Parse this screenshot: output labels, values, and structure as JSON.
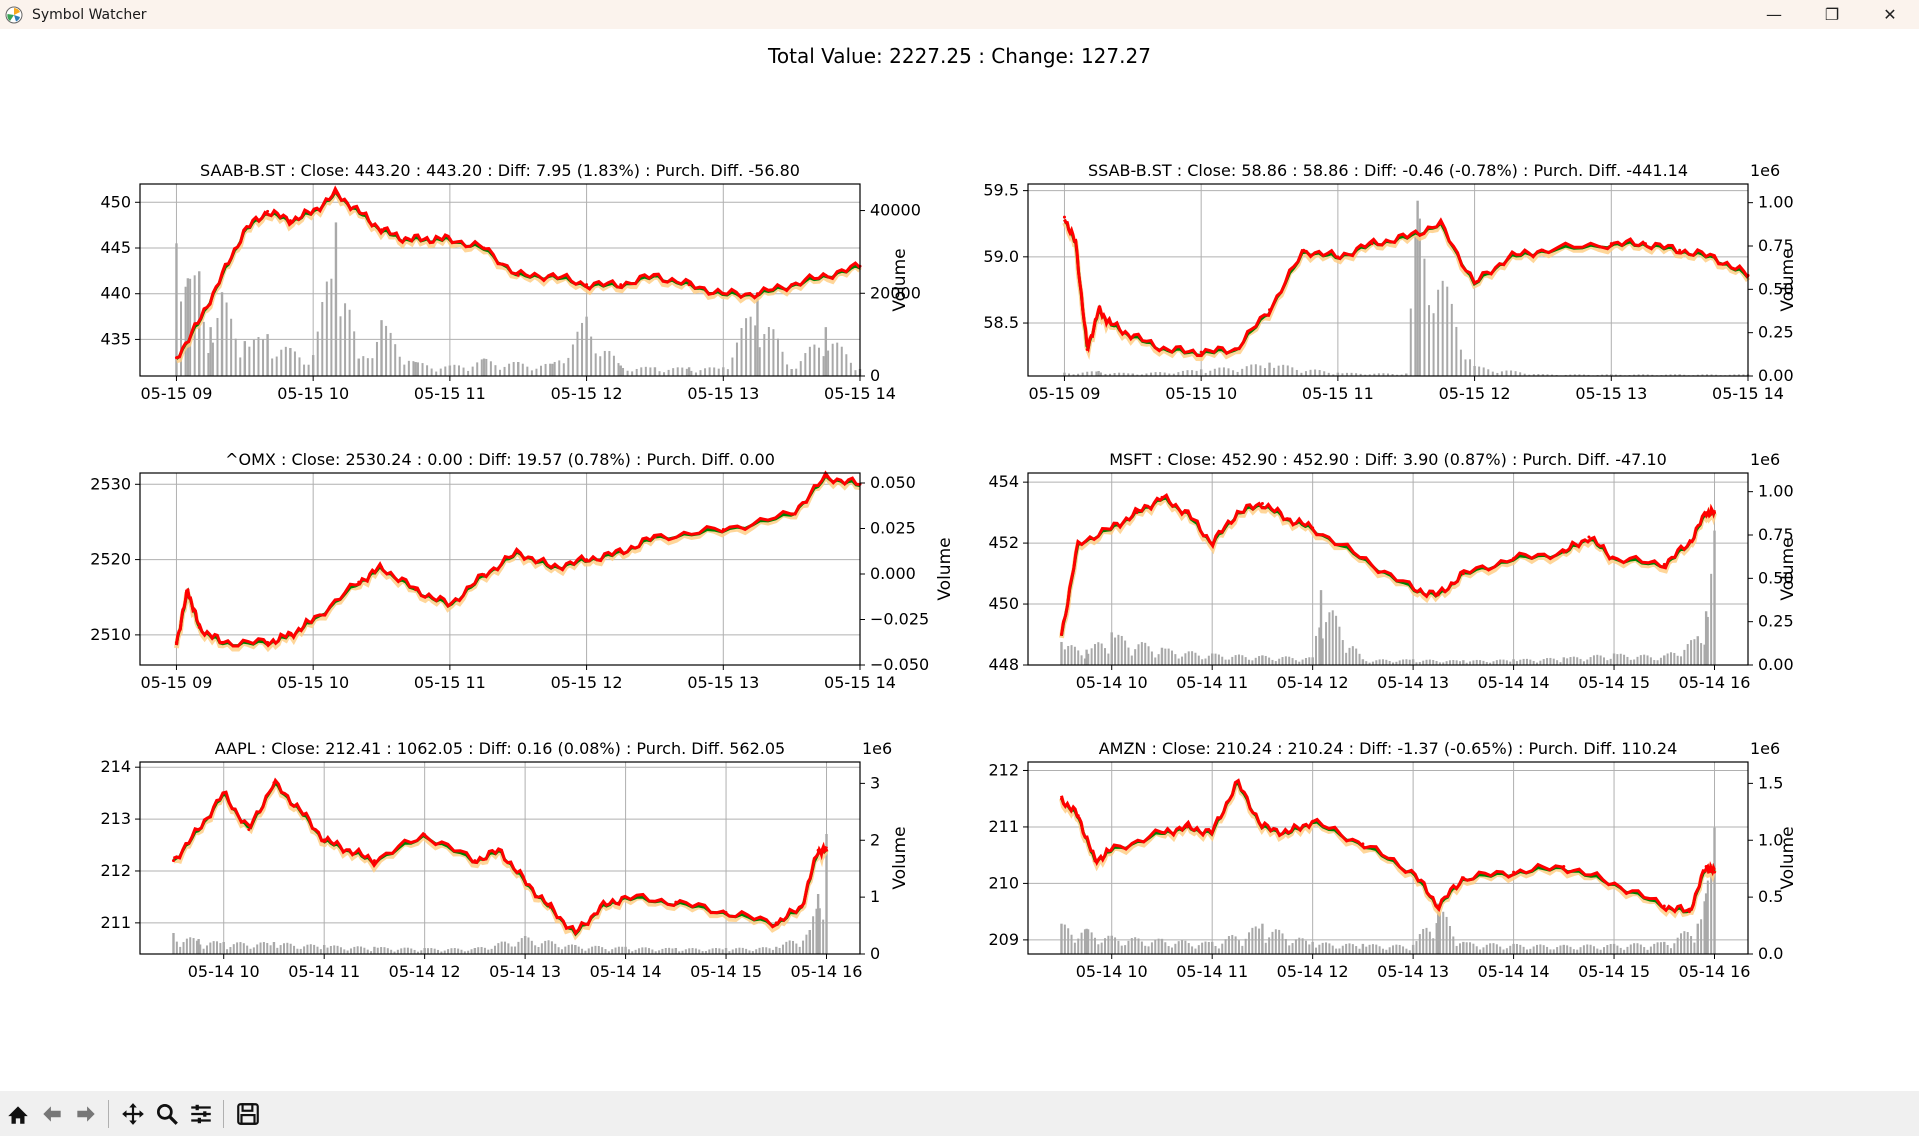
{
  "window": {
    "title": "Symbol Watcher",
    "app_icon": "matplotlib-icon"
  },
  "window_controls": [
    {
      "name": "minimize-button",
      "icon": "minimize-icon",
      "glyph": "—"
    },
    {
      "name": "restore-button",
      "icon": "restore-icon",
      "glyph": "❐"
    },
    {
      "name": "close-button",
      "icon": "close-icon",
      "glyph": "✕"
    }
  ],
  "suptitle": "Total Value: 2227.25 : Change: 127.27",
  "toolbar": [
    {
      "name": "home-button",
      "icon": "home-icon"
    },
    {
      "name": "back-button",
      "icon": "back-arrow-icon"
    },
    {
      "name": "forward-button",
      "icon": "forward-arrow-icon"
    },
    {
      "sep": true
    },
    {
      "name": "pan-button",
      "icon": "pan-icon"
    },
    {
      "name": "zoom-button",
      "icon": "zoom-icon"
    },
    {
      "name": "configure-subplots-button",
      "icon": "sliders-icon"
    },
    {
      "sep": true
    },
    {
      "name": "save-button",
      "icon": "save-icon"
    }
  ],
  "colors": {
    "close_line": "#ff0000",
    "trend_line": "#008000",
    "band": "#ffcc80",
    "volume_bar": "#a9a9a9",
    "grid": "#b0b0b0"
  },
  "chart_data": [
    {
      "type": "line",
      "title": "SAAB-B.ST : Close: 443.20 : 443.20 : Diff: 7.95 (1.83%) : Purch. Diff. -56.80",
      "x_ticks": [
        "05-15 09",
        "05-15 10",
        "05-15 11",
        "05-15 12",
        "05-15 13",
        "05-15 14"
      ],
      "xlim": [
        "05-15 08:44",
        "05-15 14:00"
      ],
      "ylim": [
        431,
        452
      ],
      "y_ticks": [
        435,
        440,
        445,
        450
      ],
      "y2_ticks": [
        "0",
        "20000",
        "40000"
      ],
      "y2label": "Volume",
      "y2_offset": "",
      "series": [
        {
          "x": [
            "05-15 09:00",
            "05-15 09:10",
            "05-15 09:20",
            "05-15 09:30",
            "05-15 09:40",
            "05-15 09:50",
            "05-15 10:00",
            "05-15 10:10",
            "05-15 10:20",
            "05-15 10:30",
            "05-15 10:40",
            "05-15 10:50",
            "05-15 11:00",
            "05-15 11:15",
            "05-15 11:30",
            "05-15 11:45",
            "05-15 12:00",
            "05-15 12:15",
            "05-15 12:30",
            "05-15 12:45",
            "05-15 13:00",
            "05-15 13:15",
            "05-15 13:30",
            "05-15 13:45",
            "05-15 14:00"
          ],
          "y": [
            433,
            437,
            442,
            447,
            449,
            448,
            449,
            451,
            449,
            447,
            446,
            446,
            446,
            445,
            442,
            442,
            441,
            441,
            442,
            441,
            440,
            440,
            441,
            442,
            443
          ]
        }
      ],
      "volume": {
        "x": [
          "05-15 09:00",
          "05-15 09:05",
          "05-15 09:10",
          "05-15 09:15",
          "05-15 09:20",
          "05-15 09:30",
          "05-15 09:40",
          "05-15 09:50",
          "05-15 10:00",
          "05-15 10:10",
          "05-15 10:20",
          "05-15 10:30",
          "05-15 10:45",
          "05-15 11:00",
          "05-15 11:15",
          "05-15 11:30",
          "05-15 11:45",
          "05-15 12:00",
          "05-15 12:15",
          "05-15 12:30",
          "05-15 12:45",
          "05-15 13:00",
          "05-15 13:15",
          "05-15 13:30",
          "05-15 13:45",
          "05-15 14:00"
        ],
        "y": [
          38000,
          28000,
          30000,
          14000,
          24000,
          10000,
          12000,
          8000,
          6000,
          44000,
          5000,
          16000,
          4000,
          3000,
          5000,
          4000,
          3500,
          17000,
          3000,
          2500,
          2500,
          2500,
          24000,
          2000,
          14000,
          2000
        ],
        "max": 55000
      }
    },
    {
      "type": "line",
      "title": "SSAB-B.ST : Close: 58.86 : 58.86 : Diff: -0.46 (-0.78%) : Purch. Diff. -441.14",
      "x_ticks": [
        "05-15 09",
        "05-15 10",
        "05-15 11",
        "05-15 12",
        "05-15 13",
        "05-15 14"
      ],
      "xlim": [
        "05-15 08:44",
        "05-15 14:00"
      ],
      "ylim": [
        58.1,
        59.55
      ],
      "y_ticks": [
        58.5,
        59.0,
        59.5
      ],
      "y2_ticks": [
        "0.00",
        "0.25",
        "0.50",
        "0.75",
        "1.00"
      ],
      "y2label": "Volume",
      "y2_offset": "1e6",
      "series": [
        {
          "x": [
            "05-15 09:00",
            "05-15 09:05",
            "05-15 09:10",
            "05-15 09:15",
            "05-15 09:20",
            "05-15 09:30",
            "05-15 09:45",
            "05-15 10:00",
            "05-15 10:15",
            "05-15 10:30",
            "05-15 10:45",
            "05-15 11:00",
            "05-15 11:15",
            "05-15 11:30",
            "05-15 11:45",
            "05-15 12:00",
            "05-15 12:15",
            "05-15 12:30",
            "05-15 13:00",
            "05-15 13:15",
            "05-15 13:30",
            "05-15 13:45",
            "05-15 14:00"
          ],
          "y": [
            59.3,
            59.1,
            58.3,
            58.6,
            58.5,
            58.4,
            58.3,
            58.28,
            58.3,
            58.6,
            59.05,
            59.0,
            59.1,
            59.15,
            59.25,
            58.8,
            59.0,
            59.05,
            59.1,
            59.1,
            59.05,
            59.0,
            58.86
          ]
        }
      ],
      "volume": {
        "x": [
          "05-15 09:00",
          "05-15 09:15",
          "05-15 09:30",
          "05-15 10:00",
          "05-15 10:30",
          "05-15 11:00",
          "05-15 11:30",
          "05-15 11:35",
          "05-15 12:00",
          "05-15 12:30",
          "05-15 13:00",
          "05-15 13:30",
          "05-15 14:00"
        ],
        "y": [
          20000,
          30000,
          15000,
          40000,
          80000,
          20000,
          15000,
          1050000,
          60000,
          10000,
          10000,
          10000,
          10000
        ],
        "max": 1150000
      }
    },
    {
      "type": "line",
      "title": "^OMX : Close: 2530.24 : 0.00 : Diff: 19.57 (0.78%) : Purch. Diff. 0.00",
      "x_ticks": [
        "05-15 09",
        "05-15 10",
        "05-15 11",
        "05-15 12",
        "05-15 13",
        "05-15 14"
      ],
      "xlim": [
        "05-15 08:44",
        "05-15 14:00"
      ],
      "ylim": [
        2506,
        2531.5
      ],
      "y_ticks": [
        2510,
        2520,
        2530
      ],
      "y2_ticks": [
        "−0.050",
        "−0.025",
        "0.000",
        "0.025",
        "0.050"
      ],
      "y2label": "Volume",
      "y2_offset": "",
      "series": [
        {
          "x": [
            "05-15 09:00",
            "05-15 09:05",
            "05-15 09:10",
            "05-15 09:20",
            "05-15 09:40",
            "05-15 09:50",
            "05-15 10:00",
            "05-15 10:20",
            "05-15 10:30",
            "05-15 10:45",
            "05-15 11:00",
            "05-15 11:15",
            "05-15 11:30",
            "05-15 11:45",
            "05-15 12:00",
            "05-15 12:15",
            "05-15 12:30",
            "05-15 13:00",
            "05-15 13:30",
            "05-15 13:45",
            "05-15 14:00"
          ],
          "y": [
            2509,
            2516,
            2511,
            2509,
            2509,
            2510,
            2512,
            2517,
            2519,
            2516,
            2514,
            2518,
            2521,
            2519,
            2520,
            2521,
            2523,
            2524,
            2526,
            2531,
            2530
          ]
        }
      ],
      "volume": null
    },
    {
      "type": "line",
      "title": "MSFT : Close: 452.90 : 452.90 : Diff: 3.90 (0.87%) : Purch. Diff. -47.10",
      "x_ticks": [
        "05-14 10",
        "05-14 11",
        "05-14 12",
        "05-14 13",
        "05-14 14",
        "05-14 15",
        "05-14 16"
      ],
      "xlim": [
        "05-14 09:10",
        "05-14 16:20"
      ],
      "ylim": [
        448,
        454.3
      ],
      "y_ticks": [
        448,
        450,
        452,
        454
      ],
      "y2_ticks": [
        "0.00",
        "0.25",
        "0.50",
        "0.75",
        "1.00"
      ],
      "y2label": "Volume",
      "y2_offset": "1e6",
      "series": [
        {
          "x": [
            "05-14 09:30",
            "05-14 09:40",
            "05-14 10:00",
            "05-14 10:15",
            "05-14 10:30",
            "05-14 10:45",
            "05-14 11:00",
            "05-14 11:15",
            "05-14 11:30",
            "05-14 11:45",
            "05-14 12:00",
            "05-14 12:30",
            "05-14 13:00",
            "05-14 13:15",
            "05-14 13:30",
            "05-14 14:00",
            "05-14 14:30",
            "05-14 14:45",
            "05-14 15:00",
            "05-14 15:30",
            "05-14 15:45",
            "05-14 15:55",
            "05-14 16:00"
          ],
          "y": [
            449,
            452,
            452.5,
            453,
            453.5,
            453,
            452,
            453,
            453.3,
            452.8,
            452.5,
            451.5,
            450.5,
            450.3,
            451,
            451.5,
            451.7,
            452.2,
            451.5,
            451.3,
            452,
            453,
            453
          ]
        }
      ],
      "volume": {
        "x": [
          "05-14 09:30",
          "05-14 09:45",
          "05-14 10:00",
          "05-14 10:30",
          "05-14 11:00",
          "05-14 11:30",
          "05-14 12:00",
          "05-14 12:05",
          "05-14 12:30",
          "05-14 13:00",
          "05-14 13:30",
          "05-14 14:00",
          "05-14 14:30",
          "05-14 15:00",
          "05-14 15:30",
          "05-14 15:50",
          "05-14 15:55",
          "05-14 16:00"
        ],
        "y": [
          120000,
          80000,
          170000,
          90000,
          60000,
          50000,
          40000,
          390000,
          30000,
          30000,
          25000,
          30000,
          40000,
          60000,
          50000,
          150000,
          280000,
          700000
        ],
        "max": 1000000
      }
    },
    {
      "type": "line",
      "title": "AAPL : Close: 212.41 : 1062.05 : Diff: 0.16 (0.08%) : Purch. Diff. 562.05",
      "x_ticks": [
        "05-14 10",
        "05-14 11",
        "05-14 12",
        "05-14 13",
        "05-14 14",
        "05-14 15",
        "05-14 16"
      ],
      "xlim": [
        "05-14 09:10",
        "05-14 16:20"
      ],
      "ylim": [
        210.4,
        214.1
      ],
      "y_ticks": [
        211,
        212,
        213,
        214
      ],
      "y2_ticks": [
        "0",
        "1",
        "2",
        "3"
      ],
      "y2label": "Volume",
      "y2_offset": "1e6",
      "series": [
        {
          "x": [
            "05-14 09:30",
            "05-14 09:45",
            "05-14 10:00",
            "05-14 10:15",
            "05-14 10:30",
            "05-14 10:45",
            "05-14 11:00",
            "05-14 11:15",
            "05-14 11:30",
            "05-14 12:00",
            "05-14 12:30",
            "05-14 12:45",
            "05-14 13:00",
            "05-14 13:15",
            "05-14 13:30",
            "05-14 13:45",
            "05-14 14:00",
            "05-14 14:30",
            "05-14 15:00",
            "05-14 15:30",
            "05-14 15:45",
            "05-14 15:55",
            "05-14 16:00"
          ],
          "y": [
            212.2,
            212.8,
            213.5,
            212.8,
            213.7,
            213.2,
            212.6,
            212.4,
            212.2,
            212.7,
            212.2,
            212.4,
            211.8,
            211.3,
            210.8,
            211.3,
            211.5,
            211.4,
            211.2,
            211.0,
            211.3,
            212.4,
            212.4
          ]
        }
      ],
      "volume": {
        "x": [
          "05-14 09:30",
          "05-14 09:45",
          "05-14 10:00",
          "05-14 10:30",
          "05-14 11:00",
          "05-14 11:30",
          "05-14 12:00",
          "05-14 12:30",
          "05-14 13:00",
          "05-14 13:30",
          "05-14 14:00",
          "05-14 14:30",
          "05-14 15:00",
          "05-14 15:30",
          "05-14 15:50",
          "05-14 15:55",
          "05-14 16:00"
        ],
        "y": [
          350000,
          250000,
          200000,
          200000,
          150000,
          120000,
          100000,
          100000,
          300000,
          150000,
          120000,
          100000,
          100000,
          120000,
          400000,
          1000000,
          2000000
        ],
        "max": 3200000
      }
    },
    {
      "type": "line",
      "title": "AMZN : Close: 210.24 : 210.24 : Diff: -1.37 (-0.65%) : Purch. Diff. 110.24",
      "x_ticks": [
        "05-14 10",
        "05-14 11",
        "05-14 12",
        "05-14 13",
        "05-14 14",
        "05-14 15",
        "05-14 16"
      ],
      "xlim": [
        "05-14 09:10",
        "05-14 16:20"
      ],
      "ylim": [
        208.75,
        212.15
      ],
      "y_ticks": [
        209,
        210,
        211,
        212
      ],
      "y2_ticks": [
        "0.0",
        "0.5",
        "1.0",
        "1.5"
      ],
      "y2label": "Volume",
      "y2_offset": "1e6",
      "series": [
        {
          "x": [
            "05-14 09:30",
            "05-14 09:40",
            "05-14 09:50",
            "05-14 10:00",
            "05-14 10:30",
            "05-14 10:45",
            "05-14 11:00",
            "05-14 11:15",
            "05-14 11:30",
            "05-14 11:45",
            "05-14 12:00",
            "05-14 12:30",
            "05-14 13:00",
            "05-14 13:15",
            "05-14 13:30",
            "05-14 14:00",
            "05-14 14:30",
            "05-14 15:00",
            "05-14 15:30",
            "05-14 15:45",
            "05-14 15:55",
            "05-14 16:00"
          ],
          "y": [
            211.5,
            211.2,
            210.4,
            210.6,
            210.9,
            211.0,
            210.9,
            211.8,
            211.0,
            210.9,
            211.1,
            210.7,
            210.2,
            209.6,
            210.1,
            210.2,
            210.3,
            210.0,
            209.6,
            209.5,
            210.3,
            210.2
          ]
        }
      ],
      "volume": {
        "x": [
          "05-14 09:30",
          "05-14 09:45",
          "05-14 10:00",
          "05-14 10:30",
          "05-14 11:00",
          "05-14 11:30",
          "05-14 12:00",
          "05-14 12:30",
          "05-14 13:00",
          "05-14 13:15",
          "05-14 13:30",
          "05-14 14:00",
          "05-14 14:30",
          "05-14 15:00",
          "05-14 15:30",
          "05-14 15:50",
          "05-14 15:55",
          "05-14 16:00"
        ],
        "y": [
          300000,
          250000,
          180000,
          150000,
          120000,
          300000,
          120000,
          100000,
          90000,
          500000,
          120000,
          100000,
          90000,
          100000,
          120000,
          300000,
          600000,
          1250000
        ],
        "max": 1900000
      }
    }
  ]
}
